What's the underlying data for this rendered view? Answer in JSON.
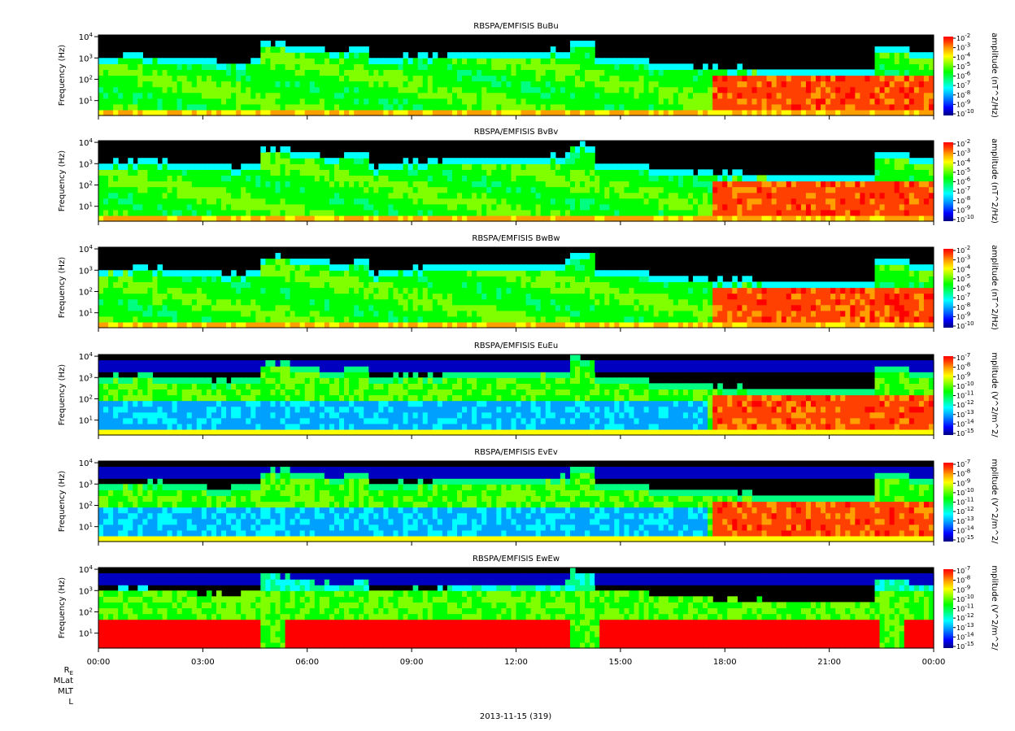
{
  "chart_data": {
    "type": "heatmap",
    "date_label": "2013-11-15 (319)",
    "x_ticks": [
      "00:00",
      "03:00",
      "06:00",
      "09:00",
      "12:00",
      "15:00",
      "18:00",
      "21:00",
      "00:00"
    ],
    "x_range_hours": [
      0,
      24
    ],
    "ephemeris_labels": [
      "R_E",
      "MLat",
      "MLT",
      "L"
    ],
    "y_label": "Frequency (Hz)",
    "y_scale": "log",
    "y_ticks": [
      "10^1",
      "10^2",
      "10^3",
      "10^4"
    ],
    "y_range_hz": [
      2,
      12000
    ],
    "colormap": [
      "#000080",
      "#0000ff",
      "#00a0ff",
      "#00ffff",
      "#00ff80",
      "#00ff00",
      "#80ff00",
      "#ffff00",
      "#ffa000",
      "#ff4000",
      "#ff0000"
    ],
    "panels": [
      {
        "title": "RBSPA/EMFISIS  BuBu",
        "colorbar_label": "amplitude (nT^2/Hz)",
        "colorbar_ticks": [
          "10^-2",
          "10^-3",
          "10^-4",
          "10^-5",
          "10^-6",
          "10^-7",
          "10^-8",
          "10^-9",
          "10^-10"
        ],
        "kind": "B"
      },
      {
        "title": "RBSPA/EMFISIS  BvBv",
        "colorbar_label": "amplitude (nT^2/Hz)",
        "colorbar_ticks": [
          "10^-2",
          "10^-3",
          "10^-4",
          "10^-5",
          "10^-6",
          "10^-7",
          "10^-8",
          "10^-9",
          "10^-10"
        ],
        "kind": "B"
      },
      {
        "title": "RBSPA/EMFISIS  BwBw",
        "colorbar_label": "amplitude (nT^2/Hz)",
        "colorbar_ticks": [
          "10^-2",
          "10^-3",
          "10^-4",
          "10^-5",
          "10^-6",
          "10^-7",
          "10^-8",
          "10^-9",
          "10^-10"
        ],
        "kind": "B"
      },
      {
        "title": "RBSPA/EMFISIS  EuEu",
        "colorbar_label": "mplitude (V^2/m^2/",
        "colorbar_ticks": [
          "10^-7",
          "10^-8",
          "10^-9",
          "10^-10",
          "10^-11",
          "10^-12",
          "10^-13",
          "10^-14",
          "10^-15"
        ],
        "kind": "E"
      },
      {
        "title": "RBSPA/EMFISIS  EvEv",
        "colorbar_label": "mplitude (V^2/m^2/",
        "colorbar_ticks": [
          "10^-7",
          "10^-8",
          "10^-9",
          "10^-10",
          "10^-11",
          "10^-12",
          "10^-13",
          "10^-14",
          "10^-15"
        ],
        "kind": "E"
      },
      {
        "title": "RBSPA/EMFISIS  EwEw",
        "colorbar_label": "mplitude (V^2/m^2/",
        "colorbar_ticks": [
          "10^-7",
          "10^-8",
          "10^-9",
          "10^-10",
          "10^-11",
          "10^-12",
          "10^-13",
          "10^-14",
          "10^-15"
        ],
        "kind": "Ew"
      }
    ]
  }
}
